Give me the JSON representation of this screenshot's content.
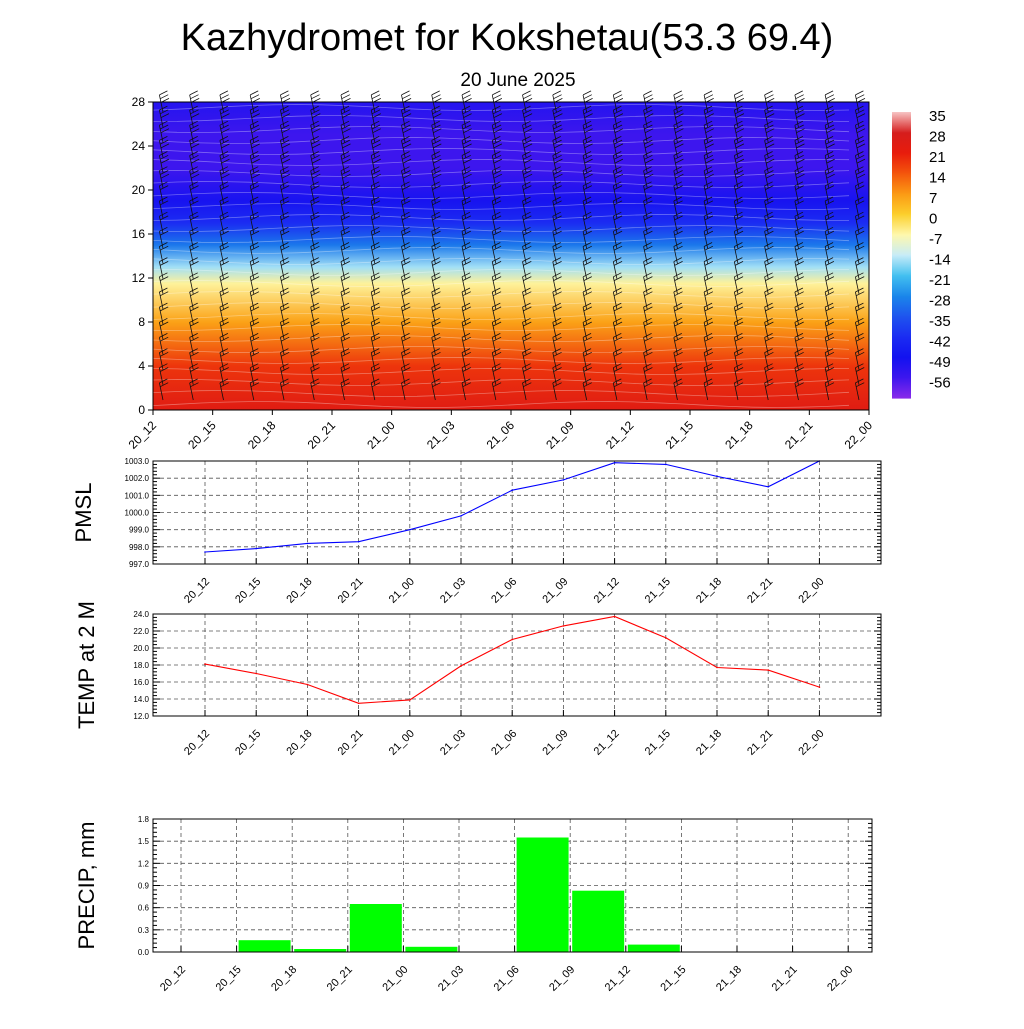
{
  "title": "Kazhydromet for Kokshetau(53.3 69.4)",
  "date": "20 June 2025",
  "chart_data": [
    {
      "type": "heatmap",
      "yticks": [
        0,
        4,
        8,
        12,
        16,
        20,
        24,
        28
      ],
      "ylim": [
        0,
        28
      ],
      "xticks": [
        "20_12",
        "20_15",
        "20_18",
        "20_21",
        "21_00",
        "21_03",
        "21_06",
        "21_09",
        "21_12",
        "21_15",
        "21_18",
        "21_21",
        "22_00"
      ],
      "colorbar": {
        "labels": [
          "35",
          "28",
          "21",
          "14",
          "7",
          "0",
          "-7",
          "-14",
          "-21",
          "-28",
          "-35",
          "-42",
          "-49",
          "-56"
        ],
        "stops": [
          {
            "v": 35,
            "c": "#f7c4c4"
          },
          {
            "v": 28,
            "c": "#d51d1d"
          },
          {
            "v": 21,
            "c": "#e81c0c"
          },
          {
            "v": 14,
            "c": "#f4560c"
          },
          {
            "v": 7,
            "c": "#fb9a14"
          },
          {
            "v": 0,
            "c": "#fccf2c"
          },
          {
            "v": -7,
            "c": "#fef8ad"
          },
          {
            "v": -14,
            "c": "#c7ecf8"
          },
          {
            "v": -21,
            "c": "#43c0f0"
          },
          {
            "v": -28,
            "c": "#1a86ea"
          },
          {
            "v": -35,
            "c": "#1e54ee"
          },
          {
            "v": -42,
            "c": "#1b2cf2"
          },
          {
            "v": -49,
            "c": "#1212f0"
          },
          {
            "v": -56,
            "c": "#3d16ee"
          },
          {
            "v": -63,
            "c": "#8a2bea"
          }
        ]
      },
      "field_by_level": [
        {
          "level": 0,
          "value": 24
        },
        {
          "level": 4,
          "value": 18
        },
        {
          "level": 8,
          "value": 6
        },
        {
          "level": 11.5,
          "value": -6
        },
        {
          "level": 13,
          "value": -16
        },
        {
          "level": 15,
          "value": -30
        },
        {
          "level": 17,
          "value": -42
        },
        {
          "level": 19,
          "value": -50
        },
        {
          "level": 22,
          "value": -56
        },
        {
          "level": 25,
          "value": -56
        },
        {
          "level": 28,
          "value": -52
        }
      ]
    },
    {
      "type": "line",
      "ylabel": "PMSL",
      "ylim": [
        997.0,
        1003.0
      ],
      "yticks": [
        "997.0",
        "998.0",
        "999.0",
        "1000.0",
        "1001.0",
        "1002.0",
        "1003.0"
      ],
      "categories": [
        "20_12",
        "20_15",
        "20_18",
        "20_21",
        "21_00",
        "21_03",
        "21_06",
        "21_09",
        "21_12",
        "21_15",
        "21_18",
        "21_21",
        "22_00"
      ],
      "values": [
        997.7,
        997.9,
        998.2,
        998.3,
        999.0,
        999.8,
        1001.3,
        1001.9,
        1002.9,
        1002.8,
        1002.1,
        1001.5,
        1003.0
      ],
      "color": "#0000ff",
      "grid": true
    },
    {
      "type": "line",
      "ylabel": "TEMP at 2 M",
      "ylim": [
        12.0,
        24.0
      ],
      "yticks": [
        "12.0",
        "14.0",
        "16.0",
        "18.0",
        "20.0",
        "22.0",
        "24.0"
      ],
      "categories": [
        "20_12",
        "20_15",
        "20_18",
        "20_21",
        "21_00",
        "21_03",
        "21_06",
        "21_09",
        "21_12",
        "21_15",
        "21_18",
        "21_21",
        "22_00"
      ],
      "values": [
        18.1,
        17.0,
        15.7,
        13.5,
        13.9,
        17.9,
        21.0,
        22.6,
        23.7,
        21.2,
        17.7,
        17.4,
        15.4
      ],
      "color": "#ff0000",
      "grid": true
    },
    {
      "type": "bar",
      "ylabel": "PRECIP, mm",
      "ylim": [
        0.0,
        1.8
      ],
      "yticks": [
        "0.0",
        "0.3",
        "0.6",
        "0.9",
        "1.2",
        "1.5",
        "1.8"
      ],
      "categories": [
        "20_12",
        "20_15",
        "20_18",
        "20_21",
        "21_00",
        "21_03",
        "21_06",
        "21_09",
        "21_12",
        "21_15",
        "21_18",
        "21_21",
        "22_00"
      ],
      "values": [
        0.0,
        0.16,
        0.04,
        0.65,
        0.07,
        0.0,
        1.55,
        0.83,
        0.1,
        0.0,
        0.0,
        0.0,
        0.0
      ],
      "color": "#00ff00",
      "grid": true
    }
  ]
}
